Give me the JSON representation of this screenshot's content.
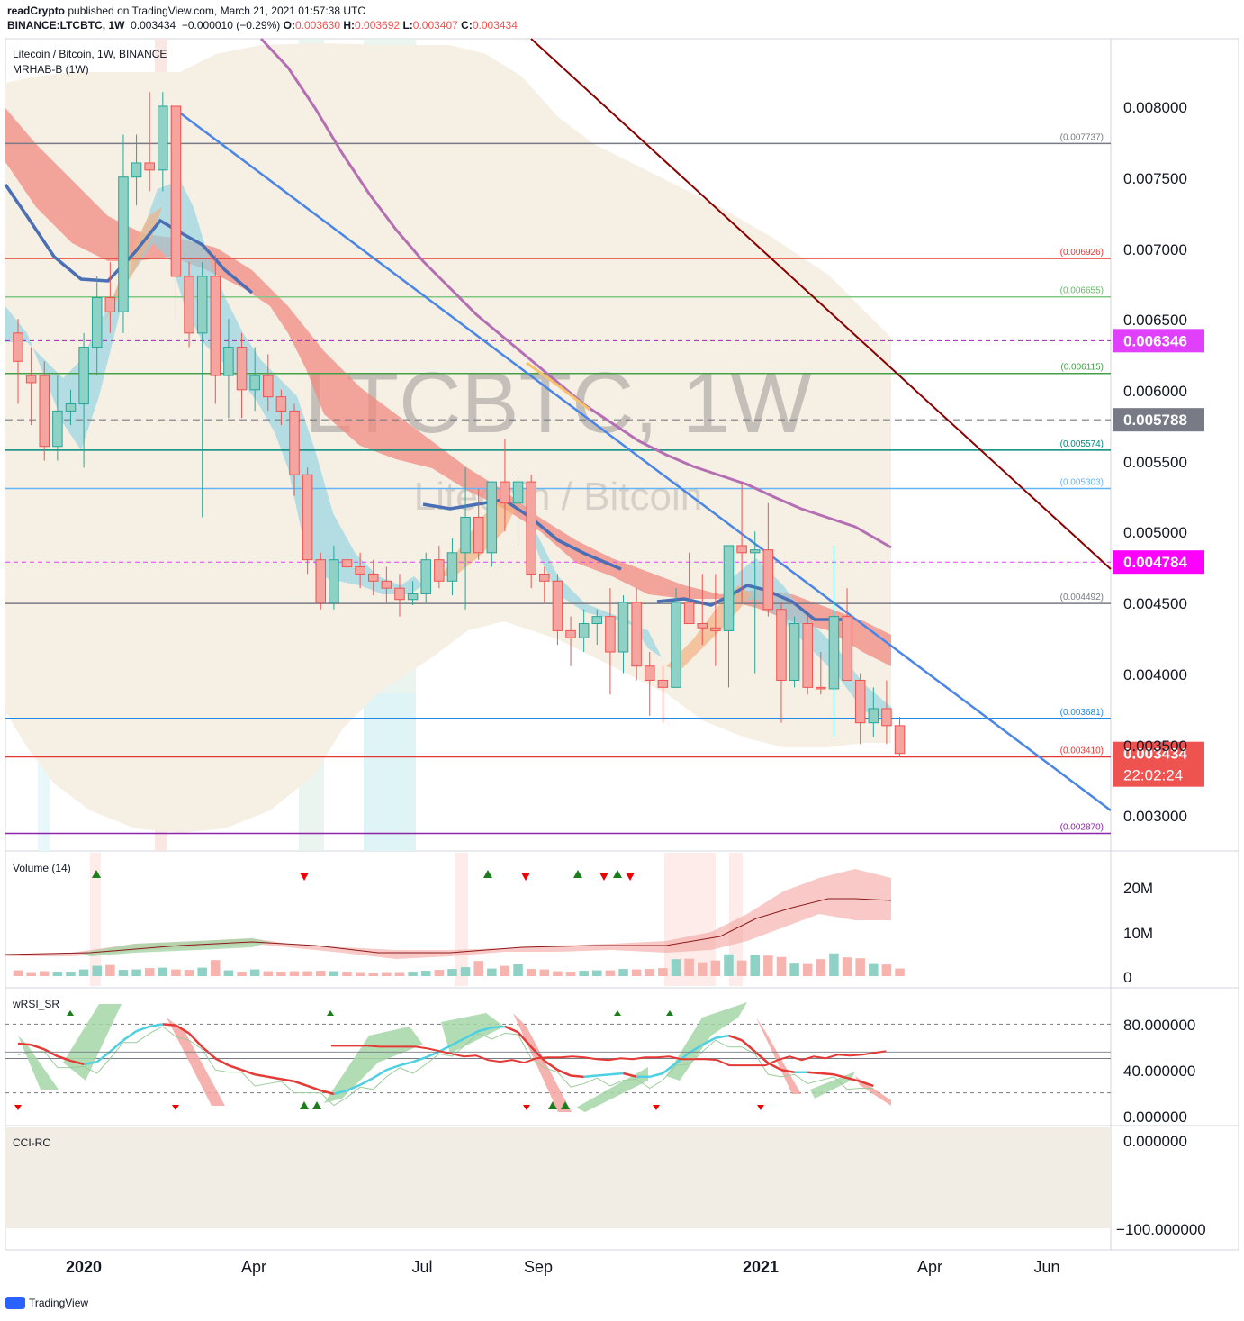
{
  "header": {
    "author": "readCrypto",
    "published": "published on TradingView.com, March 21, 2021 01:57:38 UTC",
    "symbol": "BINANCE:LTCBTC, 1W",
    "last": "0.003434",
    "change": "−0.000010 (−0.29%)",
    "o_label": "O:",
    "o_value": "0.003630",
    "h_label": "H:",
    "h_value": "0.003692",
    "l_label": "L:",
    "l_value": "0.003407",
    "c_label": "C:",
    "c_value": "0.003434"
  },
  "main_pane": {
    "title": "Litecoin / Bitcoin, 1W, BINANCE",
    "indicator": "MRHAB-B (1W)",
    "watermark_top": "LTCBTC, 1W",
    "watermark_bottom": "Litecoin / Bitcoin",
    "price_labels": [
      "0.008000",
      "0.007500",
      "0.007000",
      "0.006500",
      "0.006000",
      "0.005500",
      "0.005000",
      "0.004500",
      "0.004000",
      "0.003500",
      "0.003000"
    ],
    "level_labels": [
      {
        "text": "(0.007737)",
        "value": 0.007737,
        "color": "#787b86"
      },
      {
        "text": "(0.006926)",
        "value": 0.006926,
        "color": "#e53935"
      },
      {
        "text": "(0.006655)",
        "value": 0.006655,
        "color": "#66bb6a"
      },
      {
        "text": "(0.006115)",
        "value": 0.006115,
        "color": "#43a047"
      },
      {
        "text": "(0.005574)",
        "value": 0.005574,
        "color": "#00897b"
      },
      {
        "text": "(0.005303)",
        "value": 0.005303,
        "color": "#64b5f6"
      },
      {
        "text": "(0.004492)",
        "value": 0.004492,
        "color": "#787b86"
      },
      {
        "text": "(0.003681)",
        "value": 0.003681,
        "color": "#1e88e5"
      },
      {
        "text": "(0.003410)",
        "value": 0.00341,
        "color": "#e53935"
      },
      {
        "text": "(0.002870)",
        "value": 0.00287,
        "color": "#8e24aa"
      }
    ],
    "badges": [
      {
        "text": "0.006346",
        "color": "#e040fb",
        "value": 0.006346
      },
      {
        "text": "0.005788",
        "color": "#787b86",
        "value": 0.005788
      },
      {
        "text": "0.004784",
        "color": "#ff00ff",
        "value": 0.004784
      },
      {
        "text": "0.003434",
        "color": "#ef5350",
        "value": 0.003434
      },
      {
        "text": "22:02:24",
        "color": "#ef5350",
        "value": 0.003434
      }
    ]
  },
  "volume_pane": {
    "title": "Volume (14)",
    "labels": [
      "20M",
      "10M",
      "0"
    ]
  },
  "rsi_pane": {
    "title": "wRSI_SR",
    "labels": [
      "80.000000",
      "40.000000",
      "0.000000"
    ]
  },
  "cci_pane": {
    "title": "CCI-RC",
    "labels": [
      "0.000000",
      "−100.000000"
    ]
  },
  "time_axis": [
    "2020",
    "Apr",
    "Jul",
    "Sep",
    "2021",
    "Apr",
    "Jun"
  ],
  "footer": {
    "brand": "TradingView"
  },
  "colors": {
    "up": "#26a69a",
    "down": "#ef5350",
    "up_fill": "#8fd1c4",
    "down_fill": "#f4a5a0",
    "purple_ma": "#b46fb4",
    "blue_ma": "#4a6fb5"
  },
  "chart_data": [
    {
      "type": "candlestick",
      "title": "Litecoin / Bitcoin, 1W, BINANCE",
      "ylim": [
        0.00265,
        0.00845
      ],
      "x_week_start": "2019-11-18",
      "candles": [
        {
          "o": 0.0064,
          "h": 0.0065,
          "l": 0.0059,
          "c": 0.0062
        },
        {
          "o": 0.0061,
          "h": 0.0063,
          "l": 0.00575,
          "c": 0.00605
        },
        {
          "o": 0.0061,
          "h": 0.0062,
          "l": 0.0055,
          "c": 0.0056
        },
        {
          "o": 0.0056,
          "h": 0.0061,
          "l": 0.0055,
          "c": 0.00585
        },
        {
          "o": 0.00585,
          "h": 0.006,
          "l": 0.00575,
          "c": 0.0059
        },
        {
          "o": 0.0059,
          "h": 0.0064,
          "l": 0.00545,
          "c": 0.0063
        },
        {
          "o": 0.0063,
          "h": 0.0068,
          "l": 0.0061,
          "c": 0.00665
        },
        {
          "o": 0.00665,
          "h": 0.0069,
          "l": 0.0064,
          "c": 0.00655
        },
        {
          "o": 0.00655,
          "h": 0.0078,
          "l": 0.0064,
          "c": 0.0075
        },
        {
          "o": 0.0075,
          "h": 0.0078,
          "l": 0.0073,
          "c": 0.0076
        },
        {
          "o": 0.0076,
          "h": 0.0081,
          "l": 0.0074,
          "c": 0.00755
        },
        {
          "o": 0.00755,
          "h": 0.0081,
          "l": 0.0074,
          "c": 0.008
        },
        {
          "o": 0.008,
          "h": 0.008,
          "l": 0.0065,
          "c": 0.0068
        },
        {
          "o": 0.0068,
          "h": 0.0069,
          "l": 0.0063,
          "c": 0.0064
        },
        {
          "o": 0.0064,
          "h": 0.0069,
          "l": 0.0051,
          "c": 0.0068
        },
        {
          "o": 0.0068,
          "h": 0.00695,
          "l": 0.0059,
          "c": 0.0061
        },
        {
          "o": 0.0061,
          "h": 0.0065,
          "l": 0.0058,
          "c": 0.0063
        },
        {
          "o": 0.0063,
          "h": 0.0064,
          "l": 0.0058,
          "c": 0.006
        },
        {
          "o": 0.006,
          "h": 0.0063,
          "l": 0.00585,
          "c": 0.0061
        },
        {
          "o": 0.0061,
          "h": 0.00625,
          "l": 0.00585,
          "c": 0.00595
        },
        {
          "o": 0.00595,
          "h": 0.006,
          "l": 0.00575,
          "c": 0.00585
        },
        {
          "o": 0.00585,
          "h": 0.0059,
          "l": 0.00525,
          "c": 0.0054
        },
        {
          "o": 0.0054,
          "h": 0.00545,
          "l": 0.0047,
          "c": 0.0048
        },
        {
          "o": 0.0048,
          "h": 0.00485,
          "l": 0.00445,
          "c": 0.0045
        },
        {
          "o": 0.0045,
          "h": 0.0049,
          "l": 0.00445,
          "c": 0.0048
        },
        {
          "o": 0.0048,
          "h": 0.0049,
          "l": 0.00465,
          "c": 0.00475
        },
        {
          "o": 0.00475,
          "h": 0.00485,
          "l": 0.0046,
          "c": 0.0047
        },
        {
          "o": 0.0047,
          "h": 0.0048,
          "l": 0.00455,
          "c": 0.00465
        },
        {
          "o": 0.00465,
          "h": 0.00475,
          "l": 0.0045,
          "c": 0.0046
        },
        {
          "o": 0.0046,
          "h": 0.0047,
          "l": 0.0044,
          "c": 0.00452
        },
        {
          "o": 0.00452,
          "h": 0.00465,
          "l": 0.00448,
          "c": 0.00456
        },
        {
          "o": 0.00456,
          "h": 0.00485,
          "l": 0.0045,
          "c": 0.0048
        },
        {
          "o": 0.0048,
          "h": 0.0049,
          "l": 0.0046,
          "c": 0.00465
        },
        {
          "o": 0.00465,
          "h": 0.00495,
          "l": 0.00455,
          "c": 0.00485
        },
        {
          "o": 0.00485,
          "h": 0.00545,
          "l": 0.00445,
          "c": 0.0051
        },
        {
          "o": 0.0051,
          "h": 0.0053,
          "l": 0.0048,
          "c": 0.00485
        },
        {
          "o": 0.00485,
          "h": 0.00535,
          "l": 0.00475,
          "c": 0.00535
        },
        {
          "o": 0.00535,
          "h": 0.00565,
          "l": 0.005,
          "c": 0.0052
        },
        {
          "o": 0.0052,
          "h": 0.0054,
          "l": 0.0049,
          "c": 0.00535
        },
        {
          "o": 0.00535,
          "h": 0.0054,
          "l": 0.0046,
          "c": 0.0047
        },
        {
          "o": 0.0047,
          "h": 0.00475,
          "l": 0.0045,
          "c": 0.00465
        },
        {
          "o": 0.00465,
          "h": 0.0047,
          "l": 0.0042,
          "c": 0.0043
        },
        {
          "o": 0.0043,
          "h": 0.0044,
          "l": 0.00405,
          "c": 0.00425
        },
        {
          "o": 0.00425,
          "h": 0.00445,
          "l": 0.00415,
          "c": 0.00435
        },
        {
          "o": 0.00435,
          "h": 0.00445,
          "l": 0.0042,
          "c": 0.0044
        },
        {
          "o": 0.0044,
          "h": 0.0046,
          "l": 0.00385,
          "c": 0.00415
        },
        {
          "o": 0.00415,
          "h": 0.00455,
          "l": 0.004,
          "c": 0.0045
        },
        {
          "o": 0.0045,
          "h": 0.0046,
          "l": 0.00395,
          "c": 0.00405
        },
        {
          "o": 0.00405,
          "h": 0.00415,
          "l": 0.0037,
          "c": 0.00395
        },
        {
          "o": 0.00395,
          "h": 0.00405,
          "l": 0.00365,
          "c": 0.0039
        },
        {
          "o": 0.0039,
          "h": 0.0046,
          "l": 0.0039,
          "c": 0.0045
        },
        {
          "o": 0.0045,
          "h": 0.00485,
          "l": 0.00435,
          "c": 0.00435
        },
        {
          "o": 0.00435,
          "h": 0.0047,
          "l": 0.0042,
          "c": 0.00432
        },
        {
          "o": 0.00432,
          "h": 0.0047,
          "l": 0.00405,
          "c": 0.0043
        },
        {
          "o": 0.0043,
          "h": 0.0049,
          "l": 0.0039,
          "c": 0.0049
        },
        {
          "o": 0.0049,
          "h": 0.00535,
          "l": 0.0045,
          "c": 0.00485
        },
        {
          "o": 0.00485,
          "h": 0.005,
          "l": 0.004,
          "c": 0.00487
        },
        {
          "o": 0.00487,
          "h": 0.0052,
          "l": 0.0044,
          "c": 0.00445
        },
        {
          "o": 0.00445,
          "h": 0.0045,
          "l": 0.00365,
          "c": 0.00395
        },
        {
          "o": 0.00395,
          "h": 0.0044,
          "l": 0.0039,
          "c": 0.00435
        },
        {
          "o": 0.00435,
          "h": 0.0044,
          "l": 0.00385,
          "c": 0.0039
        },
        {
          "o": 0.0039,
          "h": 0.00415,
          "l": 0.00385,
          "c": 0.00389
        },
        {
          "o": 0.00389,
          "h": 0.0049,
          "l": 0.00355,
          "c": 0.0044
        },
        {
          "o": 0.0044,
          "h": 0.0046,
          "l": 0.00395,
          "c": 0.00395
        },
        {
          "o": 0.00395,
          "h": 0.004,
          "l": 0.0035,
          "c": 0.00365
        },
        {
          "o": 0.00365,
          "h": 0.0039,
          "l": 0.00355,
          "c": 0.00375
        },
        {
          "o": 0.00375,
          "h": 0.00395,
          "l": 0.0035,
          "c": 0.00363
        },
        {
          "o": 0.00363,
          "h": 0.003692,
          "l": 0.003407,
          "c": 0.003434
        }
      ],
      "horizontal_levels": [
        0.007737,
        0.006926,
        0.006655,
        0.006115,
        0.005574,
        0.005303,
        0.004492,
        0.003681,
        0.00341,
        0.00287,
        0.006346,
        0.005788,
        0.004784
      ]
    },
    {
      "type": "bar",
      "title": "Volume (14)",
      "ylim": [
        0,
        25
      ],
      "unit": "M",
      "values": [
        1.3,
        0.9,
        1.1,
        1.0,
        1.0,
        1.5,
        2.3,
        2.5,
        1.4,
        1.5,
        1.8,
        1.9,
        1.5,
        1.4,
        1.9,
        3.6,
        1.3,
        1.0,
        1.5,
        1.1,
        1.0,
        1.1,
        1.1,
        1.2,
        1.1,
        1.0,
        0.9,
        0.8,
        0.9,
        0.9,
        1.0,
        1.2,
        1.4,
        1.6,
        2.0,
        3.4,
        1.7,
        2.3,
        2.7,
        1.6,
        1.5,
        1.1,
        1.0,
        1.2,
        1.3,
        1.3,
        1.6,
        1.5,
        1.6,
        1.8,
        3.8,
        3.9,
        3.1,
        3.5,
        4.9,
        3.5,
        4.8,
        4.6,
        4.3,
        3.0,
        2.9,
        3.8,
        5.1,
        4.2,
        4.0,
        2.9,
        2.6,
        1.7
      ]
    },
    {
      "type": "line",
      "title": "wRSI_SR",
      "ylim": [
        0,
        100
      ],
      "values": [
        63,
        62,
        58,
        52,
        48,
        45,
        47,
        56,
        66,
        74,
        78,
        80,
        79,
        72,
        60,
        50,
        44,
        40,
        36,
        34,
        32,
        30,
        26,
        22,
        19,
        22,
        27,
        33,
        40,
        44,
        47,
        51,
        56,
        62,
        68,
        74,
        77,
        78,
        73,
        60,
        48,
        40,
        35,
        34,
        35,
        36,
        37,
        34,
        34,
        37,
        46,
        55,
        62,
        68,
        70,
        66,
        56,
        46,
        40,
        38,
        38,
        37,
        36,
        33,
        30,
        26
      ]
    },
    {
      "type": "line",
      "title": "CCI-RC",
      "ylim": [
        -120,
        15
      ],
      "values": [
        -107,
        -107,
        -107,
        -107,
        -106,
        -106,
        -106,
        -106,
        -104,
        -101,
        -98,
        -95,
        -96,
        -91,
        -89,
        -91,
        -88,
        -93,
        -94,
        -94,
        -95,
        -94,
        -92,
        -91,
        -93,
        -92,
        -94,
        -94,
        -95,
        -92,
        -92,
        -92,
        -91,
        -85,
        -85,
        -85,
        -85,
        -91,
        -95,
        -91,
        -95,
        -93,
        -97,
        -96,
        -97,
        -99,
        -101
      ]
    }
  ]
}
